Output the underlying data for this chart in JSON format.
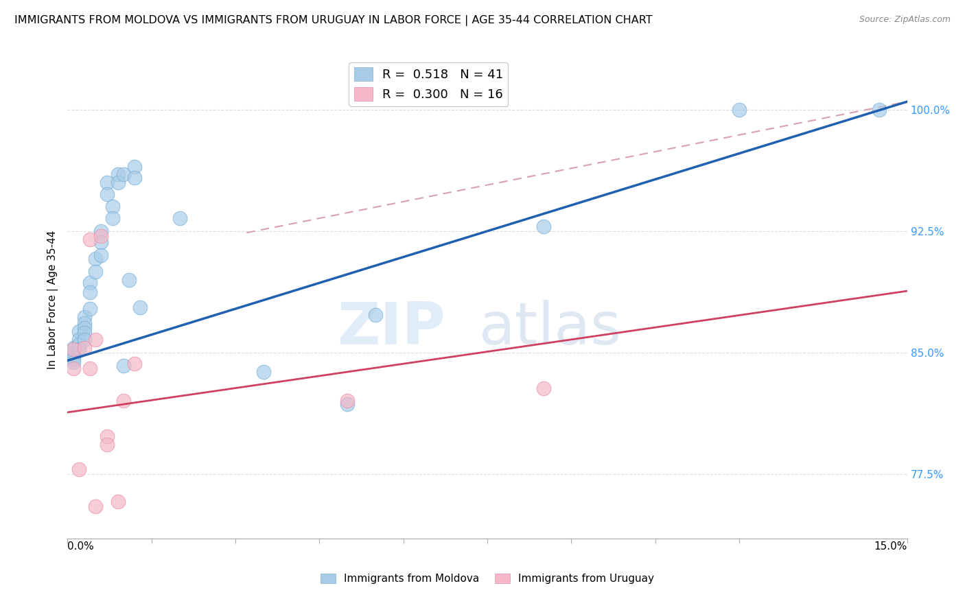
{
  "title": "IMMIGRANTS FROM MOLDOVA VS IMMIGRANTS FROM URUGUAY IN LABOR FORCE | AGE 35-44 CORRELATION CHART",
  "source": "Source: ZipAtlas.com",
  "ylabel": "In Labor Force | Age 35-44",
  "yticks": [
    0.775,
    0.85,
    0.925,
    1.0
  ],
  "ytick_labels": [
    "77.5%",
    "85.0%",
    "92.5%",
    "100.0%"
  ],
  "xtick_labels": [
    "0.0%",
    "",
    "",
    "",
    "",
    "",
    "",
    "",
    "",
    "15.0%"
  ],
  "xlim": [
    0.0,
    0.15
  ],
  "ylim": [
    0.735,
    1.03
  ],
  "legend_moldova_r": "R = ",
  "legend_moldova_rv": "0.518",
  "legend_moldova_n": "  N = 41",
  "legend_uruguay_r": "R = ",
  "legend_uruguay_rv": "0.300",
  "legend_uruguay_n": "  N = 16",
  "moldova_color": "#a8cce8",
  "moldova_edge_color": "#7ab0d8",
  "uruguay_color": "#f4b8c8",
  "uruguay_edge_color": "#e890a8",
  "moldova_line_color": "#2060b0",
  "uruguay_line_color": "#d04060",
  "dash_color": "#d8a0b0",
  "watermark_zip": "ZIP",
  "watermark_atlas": "atlas",
  "moldova_points_x": [
    0.001,
    0.001,
    0.001,
    0.001,
    0.001,
    0.002,
    0.002,
    0.002,
    0.002,
    0.003,
    0.003,
    0.003,
    0.003,
    0.003,
    0.004,
    0.004,
    0.004,
    0.005,
    0.005,
    0.006,
    0.006,
    0.006,
    0.007,
    0.007,
    0.008,
    0.008,
    0.009,
    0.009,
    0.01,
    0.01,
    0.011,
    0.012,
    0.012,
    0.013,
    0.02,
    0.035,
    0.05,
    0.055,
    0.085,
    0.12,
    0.145
  ],
  "moldova_points_y": [
    0.853,
    0.85,
    0.848,
    0.846,
    0.844,
    0.863,
    0.858,
    0.855,
    0.852,
    0.872,
    0.868,
    0.865,
    0.862,
    0.858,
    0.893,
    0.887,
    0.877,
    0.908,
    0.9,
    0.925,
    0.918,
    0.91,
    0.955,
    0.948,
    0.94,
    0.933,
    0.96,
    0.955,
    0.96,
    0.842,
    0.895,
    0.965,
    0.958,
    0.878,
    0.933,
    0.838,
    0.818,
    0.873,
    0.928,
    1.0,
    1.0
  ],
  "uruguay_points_x": [
    0.001,
    0.001,
    0.002,
    0.003,
    0.004,
    0.004,
    0.005,
    0.005,
    0.006,
    0.007,
    0.007,
    0.009,
    0.01,
    0.012,
    0.05,
    0.085
  ],
  "uruguay_points_y": [
    0.852,
    0.84,
    0.778,
    0.853,
    0.92,
    0.84,
    0.858,
    0.755,
    0.922,
    0.798,
    0.793,
    0.758,
    0.82,
    0.843,
    0.82,
    0.828
  ],
  "moldova_trend_x": [
    0.0,
    0.15
  ],
  "moldova_trend_y": [
    0.845,
    1.005
  ],
  "uruguay_trend_x": [
    0.0,
    0.15
  ],
  "uruguay_trend_y": [
    0.813,
    0.888
  ],
  "dash_trend_x": [
    0.032,
    0.15
  ],
  "dash_trend_y": [
    0.924,
    1.005
  ],
  "grid_color": "#dddddd",
  "background_color": "#ffffff",
  "title_fontsize": 11.5,
  "axis_label_fontsize": 11,
  "tick_fontsize": 11,
  "legend_fontsize": 13
}
